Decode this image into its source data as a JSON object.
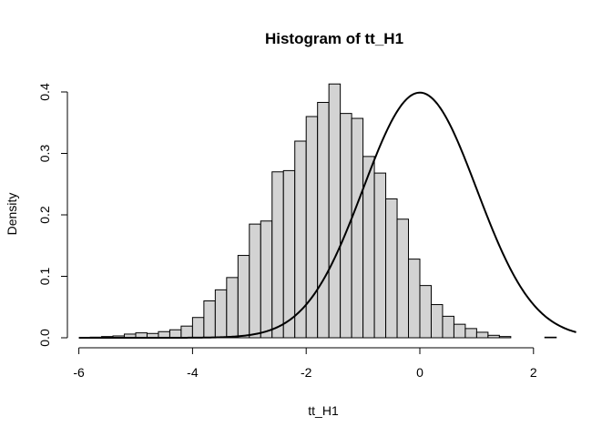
{
  "chart_data": {
    "type": "bar",
    "title": "Histogram of tt_H1",
    "xlabel": "tt_H1",
    "ylabel": "Density",
    "xlim": [
      -6.0,
      2.8
    ],
    "ylim": [
      0,
      0.42
    ],
    "x_ticks": [
      -6,
      -4,
      -2,
      0,
      2
    ],
    "y_ticks": [
      0.0,
      0.1,
      0.2,
      0.3,
      0.4
    ],
    "y_tick_labels": [
      "0.0",
      "0.1",
      "0.2",
      "0.3",
      "0.4"
    ],
    "bin_width": 0.2,
    "bin_start": -5.8,
    "densities": [
      0.001,
      0.002,
      0.003,
      0.006,
      0.008,
      0.007,
      0.01,
      0.013,
      0.019,
      0.033,
      0.06,
      0.078,
      0.098,
      0.134,
      0.185,
      0.19,
      0.27,
      0.272,
      0.32,
      0.36,
      0.383,
      0.413,
      0.365,
      0.357,
      0.295,
      0.268,
      0.226,
      0.193,
      0.128,
      0.085,
      0.054,
      0.035,
      0.022,
      0.015,
      0.009,
      0.004,
      0.002,
      0.0,
      0.0,
      0.0,
      0.001
    ],
    "curve": {
      "type": "normal-density",
      "mean": 0,
      "sd": 1,
      "x_range": [
        -6.0,
        2.75
      ]
    },
    "bar_fill": "#d3d3d3",
    "grid": false,
    "legend": "none"
  }
}
